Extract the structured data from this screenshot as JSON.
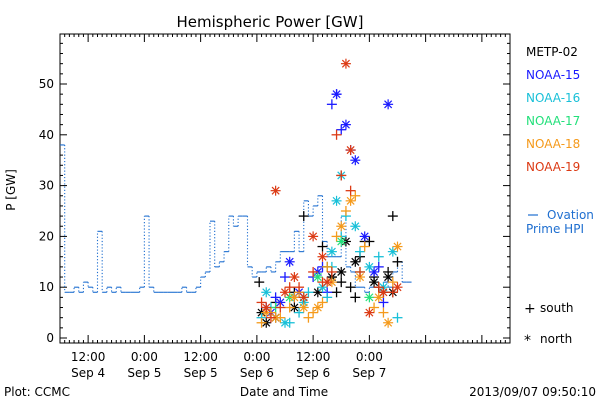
{
  "chart_data": {
    "type": "scatter",
    "title": "Hemispheric Power [GW]",
    "ylabel": "P [GW]",
    "xlabel": "Date and Time",
    "footer_left": "Plot: CCMC",
    "footer_right": "2013/09/07 09:50:10",
    "ylim": [
      0,
      60
    ],
    "y_ticks": [
      0,
      10,
      20,
      30,
      40,
      50
    ],
    "xlim": [
      6,
      102
    ],
    "x_ticks": [
      {
        "x": 12,
        "time": "12:00",
        "date": "Sep 4"
      },
      {
        "x": 24,
        "time": "0:00",
        "date": "Sep 5"
      },
      {
        "x": 36,
        "time": "12:00",
        "date": "Sep 5"
      },
      {
        "x": 48,
        "time": "0:00",
        "date": "Sep 6"
      },
      {
        "x": 60,
        "time": "12:00",
        "date": "Sep 6"
      },
      {
        "x": 72,
        "time": "0:00",
        "date": "Sep 7"
      }
    ],
    "x_unit_note": "x values are hours after 2013-09-04 00:00",
    "grid": false,
    "legend": {
      "placement": "right",
      "satellites": [
        {
          "name": "METP-02",
          "color": "#000000"
        },
        {
          "name": "NOAA-15",
          "color": "#1a1aff"
        },
        {
          "name": "NOAA-16",
          "color": "#19c0d8"
        },
        {
          "name": "NOAA-17",
          "color": "#22e07a"
        },
        {
          "name": "NOAA-18",
          "color": "#f59a1b"
        },
        {
          "name": "NOAA-19",
          "color": "#dc3a14"
        }
      ],
      "ovation_label_1": "Ovation",
      "ovation_label_2": "Prime HPI",
      "ovation_color": "#1f6fd0",
      "south_label": "south",
      "north_label": "north"
    },
    "ovation_series": {
      "name": "Ovation Prime HPI",
      "x": [
        6,
        7,
        8,
        9,
        10,
        11,
        12,
        13,
        14,
        15,
        16,
        17,
        18,
        19,
        20,
        21,
        22,
        23,
        24,
        25,
        26,
        27,
        28,
        29,
        30,
        31,
        32,
        33,
        34,
        35,
        36,
        37,
        38,
        39,
        40,
        41,
        42,
        43,
        44,
        45,
        46,
        47,
        48,
        49,
        50,
        51,
        52,
        53,
        54,
        55,
        56,
        57,
        58,
        59,
        60,
        61,
        62,
        63,
        64,
        65,
        66,
        67,
        68,
        69,
        70,
        71,
        72,
        73,
        74,
        75,
        76,
        77,
        78,
        79,
        80
      ],
      "values": [
        38,
        9,
        9,
        10,
        9,
        11,
        10,
        9,
        21,
        9,
        10,
        9,
        10,
        9,
        9,
        9,
        9,
        10,
        24,
        10,
        9,
        9,
        9,
        9,
        9,
        9,
        10,
        9,
        9,
        10,
        12,
        13,
        23,
        14,
        15,
        17,
        24,
        22,
        24,
        24,
        14,
        12,
        13,
        13,
        14,
        13,
        15,
        17,
        17,
        17,
        21,
        17,
        27,
        24,
        26,
        28,
        19,
        16,
        16,
        16,
        24,
        14,
        13,
        10,
        10,
        9,
        10,
        10,
        9,
        11,
        10,
        13,
        15,
        11,
        11
      ]
    },
    "series": [
      {
        "name": "METP-02",
        "color": "#000000",
        "south": [
          [
            48.5,
            11
          ],
          [
            52,
            7
          ],
          [
            56,
            9
          ],
          [
            58,
            24
          ],
          [
            62,
            18
          ],
          [
            63,
            14
          ],
          [
            64,
            12
          ],
          [
            65,
            9
          ],
          [
            66,
            11
          ],
          [
            68,
            10
          ],
          [
            69,
            8
          ],
          [
            70,
            16
          ],
          [
            71,
            19
          ],
          [
            72,
            19
          ],
          [
            73,
            12
          ],
          [
            74,
            10
          ],
          [
            75,
            9
          ],
          [
            76,
            13
          ],
          [
            77,
            24
          ],
          [
            78,
            15
          ]
        ],
        "north": [
          [
            49,
            5
          ],
          [
            50,
            3
          ],
          [
            52,
            4
          ],
          [
            56,
            6
          ],
          [
            61,
            9
          ],
          [
            64,
            12
          ],
          [
            66,
            13
          ],
          [
            67,
            19
          ],
          [
            69,
            15
          ],
          [
            73,
            11
          ],
          [
            76,
            12
          ],
          [
            77,
            9
          ]
        ]
      },
      {
        "name": "NOAA-15",
        "color": "#1a1aff",
        "south": [
          [
            50,
            6
          ],
          [
            52,
            8
          ],
          [
            54,
            12
          ],
          [
            56,
            8
          ],
          [
            60,
            12
          ],
          [
            62,
            14
          ],
          [
            63,
            9
          ],
          [
            64,
            46
          ],
          [
            65,
            48
          ],
          [
            66,
            41
          ],
          [
            68,
            37
          ],
          [
            74,
            14
          ],
          [
            75,
            7
          ]
        ],
        "north": [
          [
            51,
            5
          ],
          [
            53,
            7
          ],
          [
            55,
            15
          ],
          [
            57,
            9
          ],
          [
            61,
            13
          ],
          [
            65,
            48
          ],
          [
            67,
            42
          ],
          [
            69,
            35
          ],
          [
            71,
            20
          ],
          [
            73,
            13
          ],
          [
            76,
            46
          ]
        ]
      },
      {
        "name": "NOAA-16",
        "color": "#19c0d8",
        "south": [
          [
            49,
            4
          ],
          [
            51,
            6
          ],
          [
            55,
            3
          ],
          [
            57,
            5
          ],
          [
            59,
            9
          ],
          [
            63,
            8
          ],
          [
            64,
            14
          ],
          [
            66,
            20
          ],
          [
            67,
            24
          ],
          [
            70,
            17
          ],
          [
            74,
            16
          ],
          [
            78,
            4
          ]
        ],
        "north": [
          [
            50,
            9
          ],
          [
            54,
            3
          ],
          [
            58,
            7
          ],
          [
            62,
            10
          ],
          [
            64,
            17
          ],
          [
            65,
            27
          ],
          [
            66,
            32
          ],
          [
            69,
            22
          ],
          [
            72,
            14
          ],
          [
            75,
            10
          ],
          [
            77,
            17
          ]
        ]
      },
      {
        "name": "NOAA-17",
        "color": "#22e07a",
        "south": [
          [
            52,
            6
          ],
          [
            58,
            8
          ],
          [
            63,
            14
          ],
          [
            70,
            13
          ]
        ],
        "north": [
          [
            55,
            8
          ],
          [
            61,
            12
          ],
          [
            66,
            19
          ],
          [
            72,
            8
          ]
        ]
      },
      {
        "name": "NOAA-18",
        "color": "#f59a1b",
        "south": [
          [
            49,
            3
          ],
          [
            51,
            5
          ],
          [
            53,
            4
          ],
          [
            55,
            6
          ],
          [
            57,
            9
          ],
          [
            59,
            4
          ],
          [
            60,
            5
          ],
          [
            62,
            7
          ],
          [
            63,
            14
          ],
          [
            65,
            20
          ],
          [
            67,
            25
          ],
          [
            69,
            28
          ],
          [
            71,
            18
          ],
          [
            73,
            6
          ],
          [
            75,
            5
          ],
          [
            77,
            11
          ]
        ],
        "north": [
          [
            50,
            5
          ],
          [
            52,
            4
          ],
          [
            56,
            8
          ],
          [
            58,
            6
          ],
          [
            61,
            6
          ],
          [
            64,
            11
          ],
          [
            66,
            22
          ],
          [
            68,
            27
          ],
          [
            70,
            12
          ],
          [
            74,
            8
          ],
          [
            76,
            3
          ],
          [
            78,
            18
          ]
        ]
      },
      {
        "name": "NOAA-19",
        "color": "#dc3a14",
        "south": [
          [
            49,
            7
          ],
          [
            51,
            4
          ],
          [
            53,
            6
          ],
          [
            55,
            10
          ],
          [
            57,
            10
          ],
          [
            60,
            13
          ],
          [
            62,
            11
          ],
          [
            64,
            13
          ],
          [
            65,
            40
          ],
          [
            66,
            32
          ],
          [
            68,
            29
          ],
          [
            70,
            13
          ],
          [
            74,
            10
          ],
          [
            77,
            9
          ]
        ],
        "north": [
          [
            50,
            6
          ],
          [
            52,
            29
          ],
          [
            54,
            9
          ],
          [
            56,
            12
          ],
          [
            58,
            8
          ],
          [
            60,
            20
          ],
          [
            62,
            16
          ],
          [
            63,
            11
          ],
          [
            67,
            54
          ],
          [
            68,
            37
          ],
          [
            72,
            5
          ],
          [
            75,
            9
          ],
          [
            78,
            10
          ]
        ]
      }
    ]
  }
}
